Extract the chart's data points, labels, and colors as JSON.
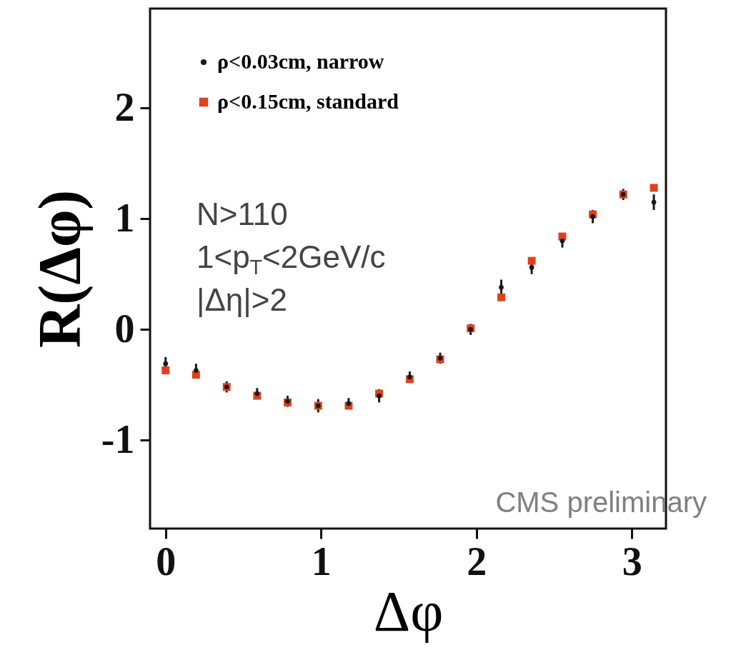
{
  "chart_data": {
    "type": "scatter",
    "xlabel": "Δφ",
    "ylabel": "R(Δφ)",
    "x": [
      0,
      0.196,
      0.393,
      0.589,
      0.785,
      0.982,
      1.178,
      1.374,
      1.571,
      1.767,
      1.963,
      2.16,
      2.356,
      2.553,
      2.749,
      2.945,
      3.142
    ],
    "series": [
      {
        "name": "ρ<0.03cm, narrow",
        "color": "#1a1a1a",
        "marker": "circle",
        "values": [
          -0.31,
          -0.37,
          -0.52,
          -0.58,
          -0.65,
          -0.69,
          -0.67,
          -0.6,
          -0.43,
          -0.26,
          0.0,
          0.38,
          0.56,
          0.8,
          1.02,
          1.22,
          1.15
        ],
        "errors": [
          0.06,
          0.06,
          0.05,
          0.05,
          0.05,
          0.06,
          0.05,
          0.06,
          0.05,
          0.05,
          0.05,
          0.07,
          0.06,
          0.06,
          0.06,
          0.05,
          0.07
        ]
      },
      {
        "name": "ρ<0.15cm, standard",
        "color": "#e0401e",
        "marker": "square",
        "values": [
          -0.37,
          -0.41,
          -0.52,
          -0.6,
          -0.66,
          -0.69,
          -0.69,
          -0.58,
          -0.45,
          -0.27,
          0.01,
          0.29,
          0.62,
          0.84,
          1.04,
          1.22,
          1.28
        ]
      }
    ],
    "xlim": [
      -0.1,
      3.22
    ],
    "ylim": [
      -1.8,
      2.9
    ],
    "xticks": [
      0,
      1,
      2,
      3
    ],
    "yticks": [
      -1,
      0,
      1,
      2
    ],
    "grid": false,
    "legend": "top left",
    "annotations": [
      "N>110",
      "1<p$_{T}$<2GeV/c",
      "|Δη|>2",
      "CMS preliminary"
    ]
  }
}
